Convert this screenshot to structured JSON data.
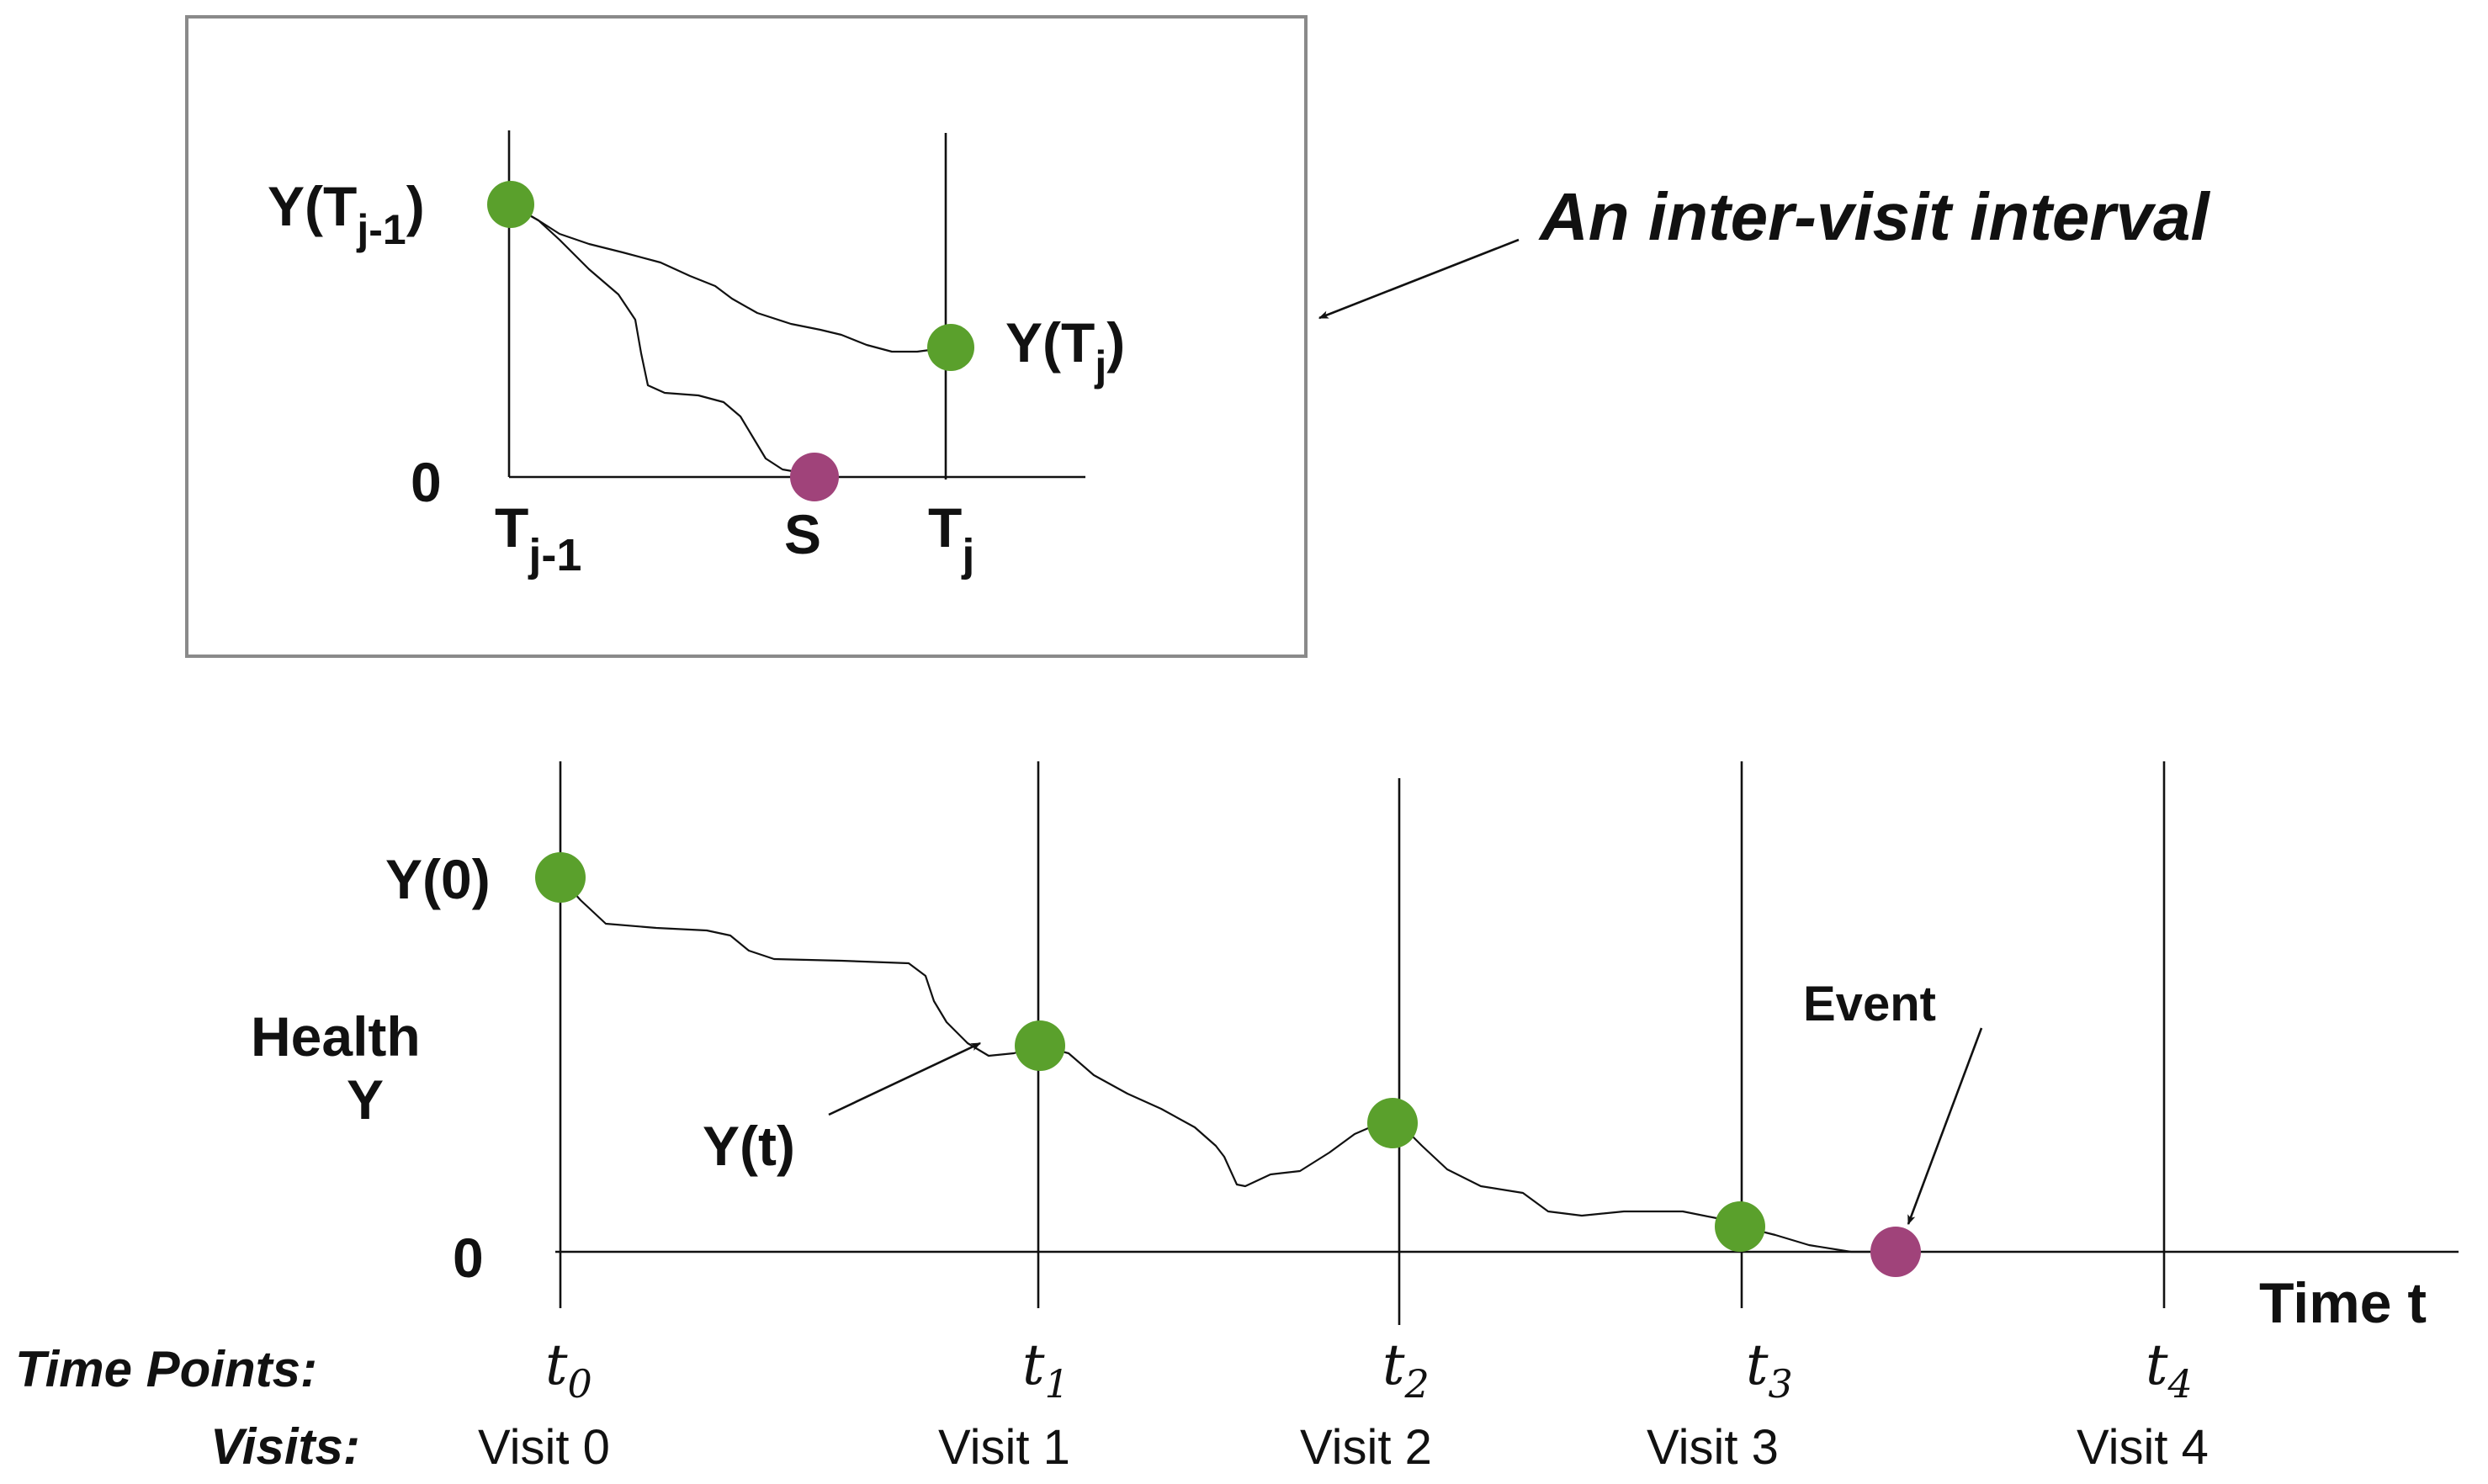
{
  "colors": {
    "visit_dot": "#5aa02c",
    "event_dot": "#a0437a",
    "ink": "#111111",
    "box_border": "#8a8a8a"
  },
  "inset": {
    "y_prev_label": "Y(T",
    "y_prev_sub": "j-1",
    "y_prev_close": ")",
    "y_cur_label": "Y(T",
    "y_cur_sub": "j",
    "y_cur_close": ")",
    "zero_label": "0",
    "t_prev_label": "T",
    "t_prev_sub": "j-1",
    "s_label": "S",
    "t_cur_label": "T",
    "t_cur_sub": "j"
  },
  "callout": {
    "text": "An inter-visit interval"
  },
  "main": {
    "y0_label": "Y(0)",
    "health_label_1": "Health",
    "health_label_2": "Y",
    "zero_label": "0",
    "yt_label": "Y(t)",
    "event_label": "Event",
    "time_axis_label": "Time t"
  },
  "rows": {
    "time_points_label": "Time Points:",
    "visits_label": "Visits:",
    "time_points": [
      {
        "base": "t",
        "sub": "0"
      },
      {
        "base": "t",
        "sub": "1"
      },
      {
        "base": "t",
        "sub": "2"
      },
      {
        "base": "t",
        "sub": "3"
      },
      {
        "base": "t",
        "sub": "4"
      }
    ],
    "visits": [
      "Visit 0",
      "Visit 1",
      "Visit 2",
      "Visit 3",
      "Visit 4"
    ]
  }
}
